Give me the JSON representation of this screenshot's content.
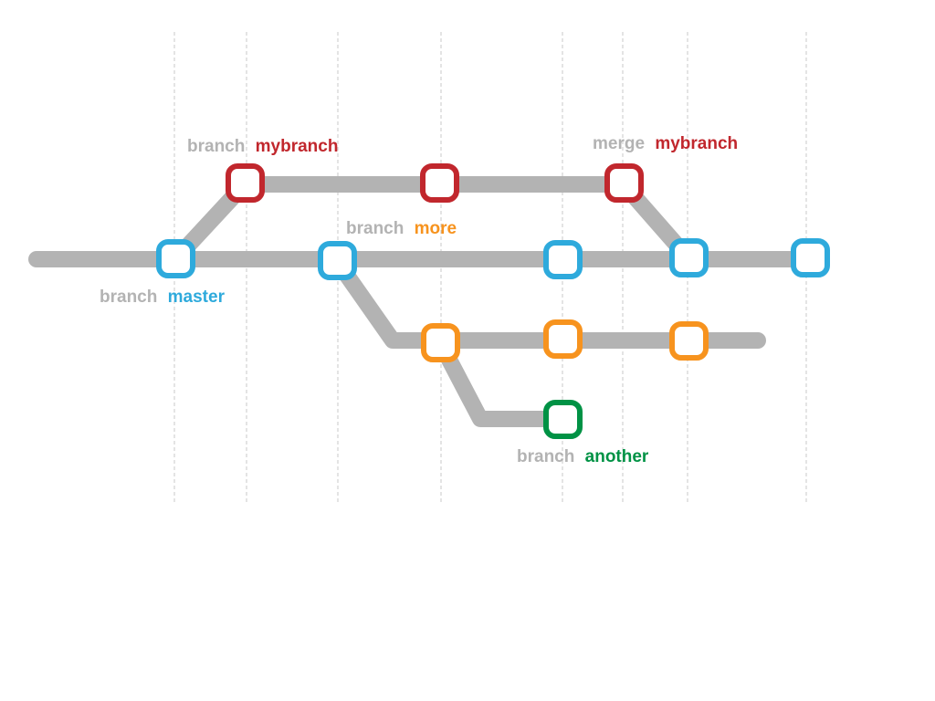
{
  "colors": {
    "track": "#b3b3b3",
    "guide": "#c8c8c8",
    "master": "#2eaadc",
    "mybranch": "#c1272d",
    "more": "#f7931e",
    "another": "#009245"
  },
  "labels": {
    "branch_mybranch": {
      "verb": "branch",
      "name": "mybranch"
    },
    "merge_mybranch": {
      "verb": "merge",
      "name": "mybranch"
    },
    "branch_more": {
      "verb": "branch",
      "name": "more"
    },
    "branch_master": {
      "verb": "branch",
      "name": "master"
    },
    "branch_another": {
      "verb": "branch",
      "name": "another"
    }
  }
}
